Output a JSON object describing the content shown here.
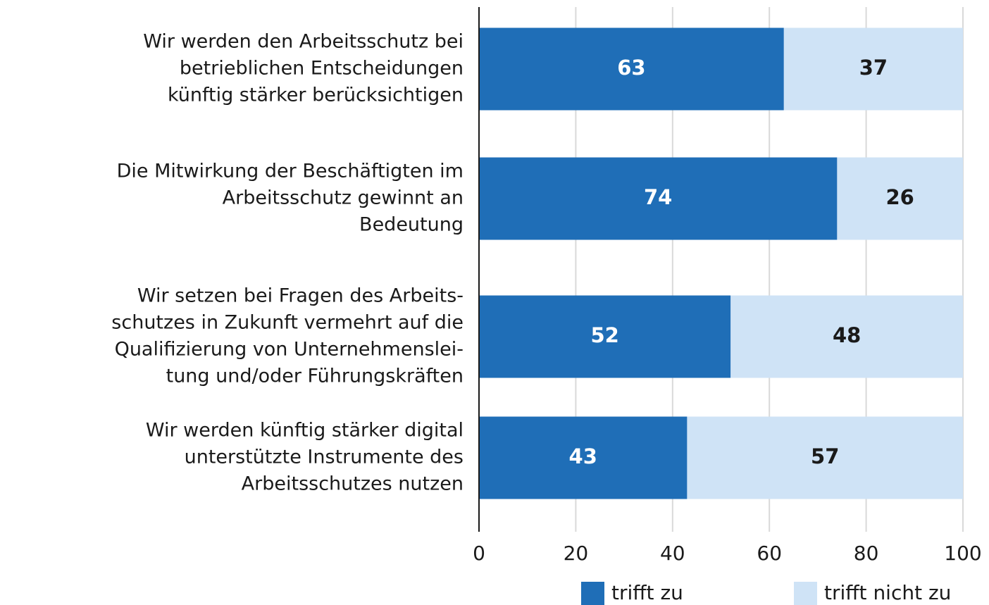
{
  "chart_data": {
    "type": "stacked-barh",
    "categories": [
      [
        "Wir werden den Arbeitsschutz bei",
        "betrieblichen Entscheidungen",
        "künftig stärker berücksichtigen"
      ],
      [
        "Die Mitwirkung der Beschäftigten im",
        "Arbeitsschutz gewinnt an",
        "Bedeutung"
      ],
      [
        "Wir setzen bei Fragen des Arbeits-",
        "schutzes in Zukunft vermehrt auf die",
        "Qualifizierung von Unternehmenslei-",
        "tung und/oder Führungskräften"
      ],
      [
        "Wir werden künftig stärker digital",
        "unterstützte Instrumente des",
        "Arbeitsschutzes nutzen"
      ]
    ],
    "series": [
      {
        "name": "trifft zu",
        "color": "#1f6eb7",
        "label_color": "#ffffff",
        "values": [
          63,
          74,
          52,
          43
        ]
      },
      {
        "name": "trifft nicht zu",
        "color": "#cfe3f6",
        "label_color": "#1a1a1a",
        "values": [
          37,
          26,
          48,
          57
        ]
      }
    ],
    "xlim": [
      0,
      100
    ],
    "xticks": [
      0,
      20,
      40,
      60,
      80,
      100
    ],
    "grid": true,
    "legend": "bottom"
  }
}
